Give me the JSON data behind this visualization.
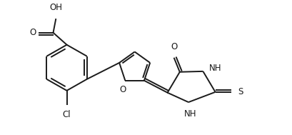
{
  "background_color": "#ffffff",
  "line_color": "#1a1a1a",
  "line_width": 1.4,
  "font_size": 8.5,
  "figsize": [
    4.09,
    1.89
  ],
  "dpi": 100,
  "xlim": [
    0,
    9
  ],
  "ylim": [
    0,
    4.2
  ]
}
